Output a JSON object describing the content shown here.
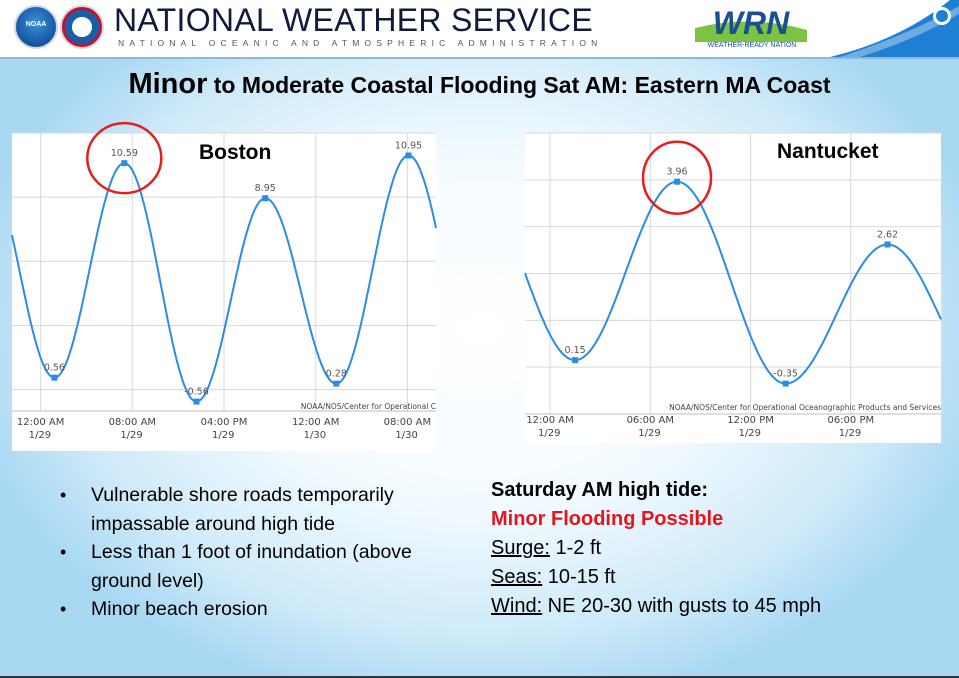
{
  "header": {
    "org_name": "NATIONAL WEATHER SERVICE",
    "org_subtitle": "NATIONAL OCEANIC AND ATMOSPHERIC ADMINISTRATION",
    "noaa_logo_text": "NOAA",
    "wrn_logo_text": "WRN",
    "wrn_tagline": "WEATHER-READY NATION"
  },
  "slide": {
    "title_emphasis": "Minor",
    "title_rest": " to Moderate Coastal Flooding Sat AM: Eastern MA Coast"
  },
  "chart_data": [
    {
      "type": "line",
      "title": "Boston",
      "credit": "NOAA/NOS/Center for Operational C",
      "x_ticks": [
        {
          "time": "12:00 AM",
          "date": "1/29"
        },
        {
          "time": "08:00 AM",
          "date": "1/29"
        },
        {
          "time": "04:00 PM",
          "date": "1/29"
        },
        {
          "time": "12:00 AM",
          "date": "1/30"
        },
        {
          "time": "08:00 AM",
          "date": "1/30"
        }
      ],
      "x_tick_hours": [
        0,
        8,
        16,
        24,
        32
      ],
      "xlim_hours": [
        -2.5,
        34.5
      ],
      "ylim": [
        -1,
        12
      ],
      "grid": true,
      "series": [
        {
          "color": "#2b8ce6",
          "points": [
            {
              "hour": 1.2,
              "value": 0.56,
              "label": "0.56"
            },
            {
              "hour": 7.3,
              "value": 10.59,
              "label": "10.59"
            },
            {
              "hour": 13.6,
              "value": -0.56,
              "label": "-0.56"
            },
            {
              "hour": 19.6,
              "value": 8.95,
              "label": "8.95"
            },
            {
              "hour": 25.8,
              "value": 0.28,
              "label": "0.28"
            },
            {
              "hour": 32.1,
              "value": 10.95,
              "label": "10.95"
            }
          ]
        }
      ],
      "highlight": {
        "hour": 7.3,
        "value": 10.59,
        "color": "#e32020"
      }
    },
    {
      "type": "line",
      "title": "Nantucket",
      "credit": "NOAA/NOS/Center for Operational Oceanographic Products and Services",
      "x_ticks": [
        {
          "time": "12:00 AM",
          "date": "1/29"
        },
        {
          "time": "06:00 AM",
          "date": "1/29"
        },
        {
          "time": "12:00 PM",
          "date": "1/29"
        },
        {
          "time": "06:00 PM",
          "date": "1/29"
        }
      ],
      "x_tick_hours": [
        0,
        6,
        12,
        18
      ],
      "xlim_hours": [
        -1.5,
        23.4
      ],
      "ylim": [
        -1,
        5
      ],
      "grid": true,
      "series": [
        {
          "color": "#2b8ce6",
          "points": [
            {
              "hour": 1.5,
              "value": 0.15,
              "label": "0.15"
            },
            {
              "hour": 7.6,
              "value": 3.96,
              "label": "3.96"
            },
            {
              "hour": 14.1,
              "value": -0.35,
              "label": "-0.35"
            },
            {
              "hour": 20.2,
              "value": 2.62,
              "label": "2.62"
            }
          ]
        }
      ],
      "highlight": {
        "hour": 7.6,
        "value": 3.96,
        "color": "#e32020"
      }
    }
  ],
  "impacts": [
    "Vulnerable shore roads temporarily impassable around high tide",
    "Less than 1 foot of inundation (above ground level)",
    "Minor beach erosion"
  ],
  "conditions": {
    "heading": "Saturday AM high tide:",
    "alert": "Minor Flooding Possible",
    "surge_label": "Surge:",
    "surge_value": " 1-2 ft",
    "seas_label": "Seas:",
    "seas_value": " 10-15 ft",
    "wind_label": "Wind:",
    "wind_value": " NE 20-30 with gusts to 45 mph"
  },
  "colors": {
    "series_line": "#2b8ce6",
    "highlight_circle": "#e32020",
    "alert_text": "#e8141b"
  }
}
